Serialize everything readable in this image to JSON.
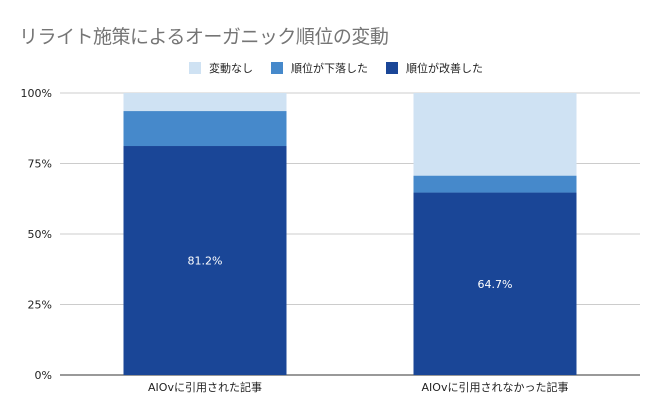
{
  "chart_data": {
    "type": "bar",
    "stacked": "100%",
    "title": "リライト施策によるオーガニック順位の変動",
    "categories": [
      "AIOvに引用された記事",
      "AIOvに引用されなかった記事"
    ],
    "series": [
      {
        "name": "順位が改善した",
        "color": "#1a4697",
        "values": [
          81.2,
          64.7
        ],
        "labels": [
          "81.2%",
          "64.7%"
        ]
      },
      {
        "name": "順位が下落した",
        "color": "#4689cb",
        "values": [
          12.4,
          6.0
        ]
      },
      {
        "name": "変動なし",
        "color": "#cfe2f3",
        "values": [
          6.4,
          29.3
        ]
      }
    ],
    "legend_order": [
      "変動なし",
      "順位が下落した",
      "順位が改善した"
    ],
    "ylim": [
      0,
      100
    ],
    "yticks": [
      "0%",
      "25%",
      "50%",
      "75%",
      "100%"
    ],
    "legend_position": "top",
    "grid": true
  }
}
